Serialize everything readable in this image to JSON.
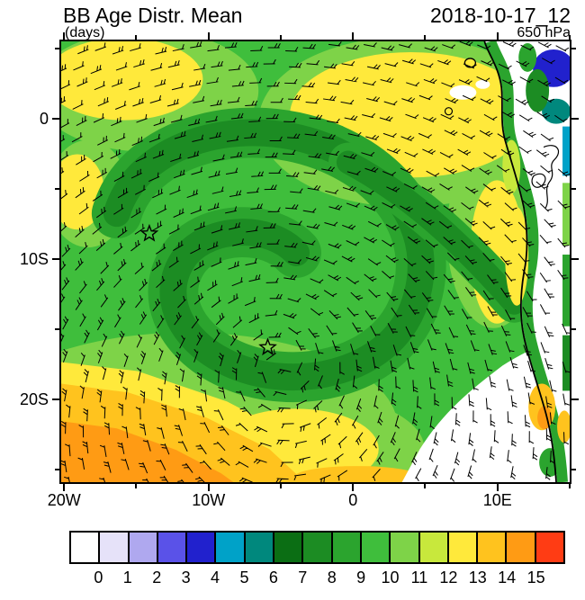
{
  "header": {
    "title": "BB Age Distr. Mean",
    "units_label": "(days)",
    "datetime": "2018-10-17_12",
    "level": "650 hPa"
  },
  "chart_data": {
    "type": "heatmap",
    "subtype": "filled-contour-map-with-wind-barbs",
    "title": "BB Age Distr. Mean",
    "units": "days",
    "level": "650 hPa",
    "valid_time": "2018-10-17_12",
    "x_axis": {
      "name": "longitude",
      "ticks": [
        {
          "label": "20W",
          "lon": -20
        },
        {
          "label": "10W",
          "lon": -10
        },
        {
          "label": "0",
          "lon": 0
        },
        {
          "label": "10E",
          "lon": 10
        }
      ],
      "range_lon": [
        -20.2,
        15.0
      ]
    },
    "y_axis": {
      "name": "latitude",
      "ticks": [
        {
          "label": "0",
          "lat": 0
        },
        {
          "label": "10S",
          "lat": -10
        },
        {
          "label": "20S",
          "lat": -20
        }
      ],
      "range_lat": [
        5.5,
        -25.9
      ]
    },
    "levels": [
      0,
      1,
      2,
      3,
      4,
      5,
      6,
      7,
      8,
      9,
      10,
      11,
      12,
      13,
      14,
      15
    ],
    "palette": [
      "#FFFFFF",
      "#E6E2F9",
      "#AFA8EF",
      "#5A52E8",
      "#2121CD",
      "#00A2C8",
      "#00887D",
      "#0B6E14",
      "#1C8C23",
      "#2BA42E",
      "#3FBE3C",
      "#7ED348",
      "#C8E83C",
      "#FFE93B",
      "#FFC31E",
      "#FF9B14",
      "#FF3C14"
    ],
    "colorbar_note": "16 labels mark the boundaries between 17 color bins; lowest bin (below 0 days) is white",
    "markers": [
      {
        "symbol": "star",
        "lon": -14.1,
        "lat": -8.2
      },
      {
        "symbol": "star",
        "lon": -5.9,
        "lat": -16.3
      }
    ],
    "overlays": [
      "wind-barbs",
      "africa-coastline",
      "star-markers"
    ],
    "field_regions": [
      {
        "area": "central South Atlantic gyre (15W-5W, 5S-18S)",
        "age_days": "8-10 (dark green spiral)"
      },
      {
        "area": "northern and northeastern sector (near equator)",
        "age_days": "11-13 (light green / yellow)"
      },
      {
        "area": "southwest corner (20W, 18S-26S)",
        "age_days": "13-15 (orange)"
      },
      {
        "area": "south-central near 5W, 20S",
        "age_days": "12-13 (yellow band)"
      },
      {
        "area": "southeast ocean off Angola/Namibia coast",
        "age_days": "< 0-1 (white, no aged smoke)"
      },
      {
        "area": "coastal Africa near 10E-15E, 0-5S",
        "age_days": "2-7 patches (blue / teal)"
      }
    ]
  }
}
